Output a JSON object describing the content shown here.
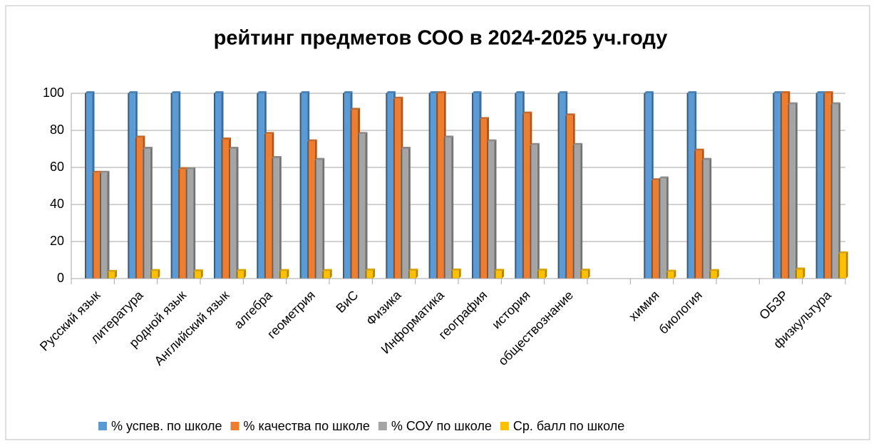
{
  "chart_data": {
    "type": "bar",
    "title": "рейтинг предметов СОО в 2024-2025 уч.году",
    "categories": [
      "Русский язык",
      "литература",
      "родной язык",
      "Английский язык",
      "алгебра",
      "геометрия",
      "ВиС",
      "Физика",
      "Информатика",
      "география",
      "история",
      "обществознание",
      null,
      "химия",
      "биология",
      null,
      "ОБЗР",
      "физкультура"
    ],
    "series": [
      {
        "name": "% успев. по школе",
        "color": "#5b9bd5",
        "values": [
          100,
          100,
          100,
          100,
          100,
          100,
          100,
          100,
          100,
          100,
          100,
          100,
          null,
          100,
          100,
          null,
          100,
          100
        ]
      },
      {
        "name": "% качества по школе",
        "color": "#ed7d31",
        "values": [
          57,
          76,
          59,
          75,
          78,
          74,
          91,
          97,
          100,
          86,
          89,
          88,
          null,
          53,
          69,
          null,
          100,
          100
        ]
      },
      {
        "name": "% СОУ по школе",
        "color": "#a5a5a5",
        "values": [
          57,
          70,
          59,
          70,
          65,
          64,
          78,
          70,
          76,
          74,
          72,
          72,
          null,
          54,
          64,
          null,
          94,
          94
        ]
      },
      {
        "name": "Ср. балл по школе",
        "color": "#ffc000",
        "values": [
          3.5,
          4,
          3.8,
          4,
          4,
          4,
          4.3,
          4.2,
          4.3,
          4.1,
          4.2,
          4.2,
          null,
          3.6,
          4,
          null,
          4.8,
          13.5
        ]
      }
    ],
    "ylim": [
      0,
      100
    ],
    "yticks": [
      0,
      20,
      40,
      60,
      80,
      100
    ],
    "grid": true,
    "legend": "bottom"
  }
}
